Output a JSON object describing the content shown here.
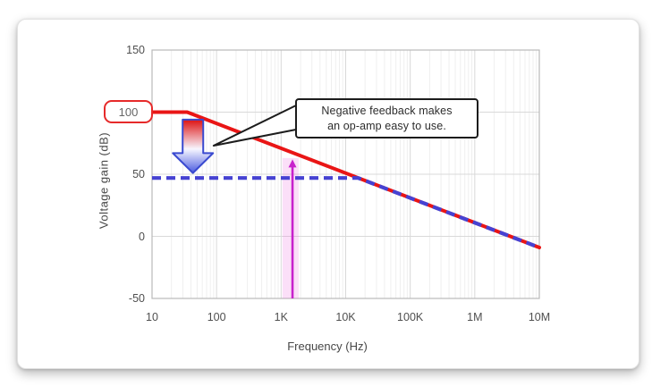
{
  "chart_data": {
    "type": "line",
    "title": "",
    "x_axis": {
      "label": "Frequency (Hz)",
      "scale": "log",
      "tick_labels": [
        "10",
        "100",
        "1K",
        "10K",
        "100K",
        "1M",
        "10M"
      ],
      "tick_values": [
        10,
        100,
        1000,
        10000,
        100000,
        1000000,
        10000000
      ],
      "range_hz": [
        10,
        10000000
      ]
    },
    "y_axis": {
      "label": "Voltage gain (dB)",
      "tick_labels": [
        "150",
        "100",
        "50",
        "0",
        "-50"
      ],
      "tick_values": [
        150,
        100,
        50,
        0,
        -50
      ],
      "range_db": [
        -50,
        150
      ]
    },
    "grid": {
      "major": true,
      "minor_log_verticals": true
    },
    "series": [
      {
        "name": "open-loop-gain",
        "style": "solid",
        "color": "#e91515",
        "points_hz_db": [
          [
            10,
            100
          ],
          [
            35,
            100
          ],
          [
            10000000,
            -9
          ]
        ]
      },
      {
        "name": "closed-loop-gain-negative-feedback",
        "style": "dashed",
        "color": "#4642d2",
        "points_hz_db": [
          [
            10,
            47
          ],
          [
            15600,
            47
          ],
          [
            10000000,
            -9
          ]
        ]
      }
    ],
    "annotations": {
      "open_loop_gain_badge": {
        "text": "100",
        "border_color": "#e62a2a"
      },
      "callout": {
        "line1": "Negative feedback makes",
        "line2": "an op-amp easy to use.",
        "points_to_hz_db": [
          90,
          73
        ]
      },
      "gain_reduction_arrow": {
        "at_hz": 43,
        "from_db": 94,
        "to_db": 51,
        "gradient": [
          "#dd1111",
          "#f7f7ff",
          "#4b5be0"
        ],
        "outline_color": "#3a4ad0"
      },
      "signal_arrow": {
        "at_hz": 1500,
        "tip_db": 62,
        "color": "#c822cc",
        "band_hz": [
          1050,
          1870
        ],
        "band_color": "rgba(236,110,222,0.22)"
      }
    }
  }
}
